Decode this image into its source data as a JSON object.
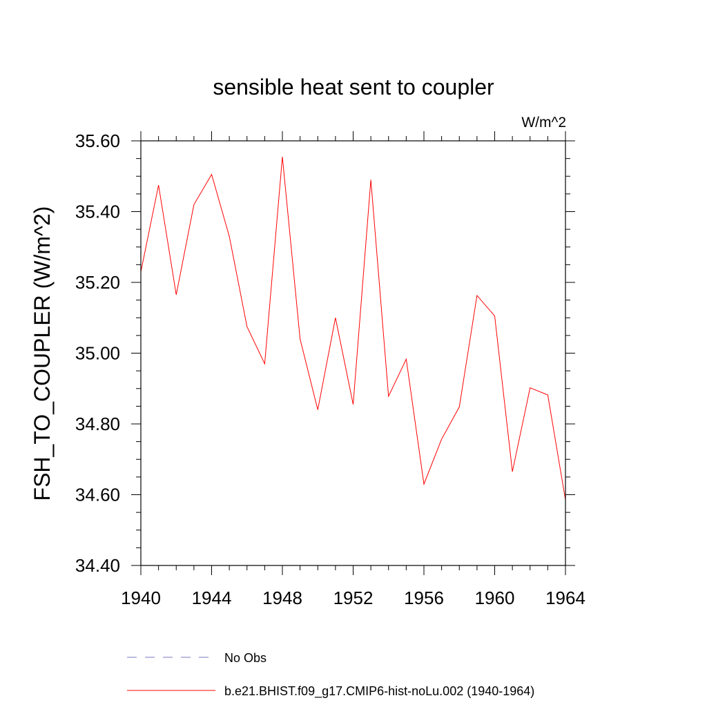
{
  "chart_data": {
    "type": "line",
    "title": "sensible heat sent to coupler",
    "units": "W/m^2",
    "ylabel": "FSH_TO_COUPLER  (W/m^2)",
    "xlabel": "",
    "xlim": [
      1940,
      1964
    ],
    "ylim": [
      34.4,
      35.6
    ],
    "x_ticks": [
      "1940",
      "1944",
      "1948",
      "1952",
      "1956",
      "1960",
      "1964"
    ],
    "y_ticks": [
      "34.40",
      "34.60",
      "34.80",
      "35.00",
      "35.20",
      "35.40",
      "35.60"
    ],
    "grid": false,
    "legend_position": "bottom",
    "x": [
      1940,
      1941,
      1942,
      1943,
      1944,
      1945,
      1946,
      1947,
      1948,
      1949,
      1950,
      1951,
      1952,
      1953,
      1954,
      1955,
      1956,
      1957,
      1958,
      1959,
      1960,
      1961,
      1962,
      1963,
      1964
    ],
    "series": [
      {
        "name": "b.e21.BHIST.f09_g17.CMIP6-hist-noLu.002 (1940-1964)",
        "color": "#ff0000",
        "style": "solid",
        "values": [
          35.23,
          35.475,
          35.165,
          35.42,
          35.505,
          35.33,
          35.075,
          34.97,
          35.555,
          35.04,
          34.84,
          35.1,
          34.855,
          35.49,
          34.878,
          34.983,
          34.63,
          34.757,
          34.848,
          35.163,
          35.105,
          34.665,
          34.902,
          34.882,
          34.585
        ]
      }
    ],
    "legend": [
      {
        "label": "No Obs",
        "color": "#7b76c2",
        "style": "dashed"
      },
      {
        "label": "b.e21.BHIST.f09_g17.CMIP6-hist-noLu.002 (1940-1964)",
        "color": "#ff0000",
        "style": "solid"
      }
    ]
  }
}
